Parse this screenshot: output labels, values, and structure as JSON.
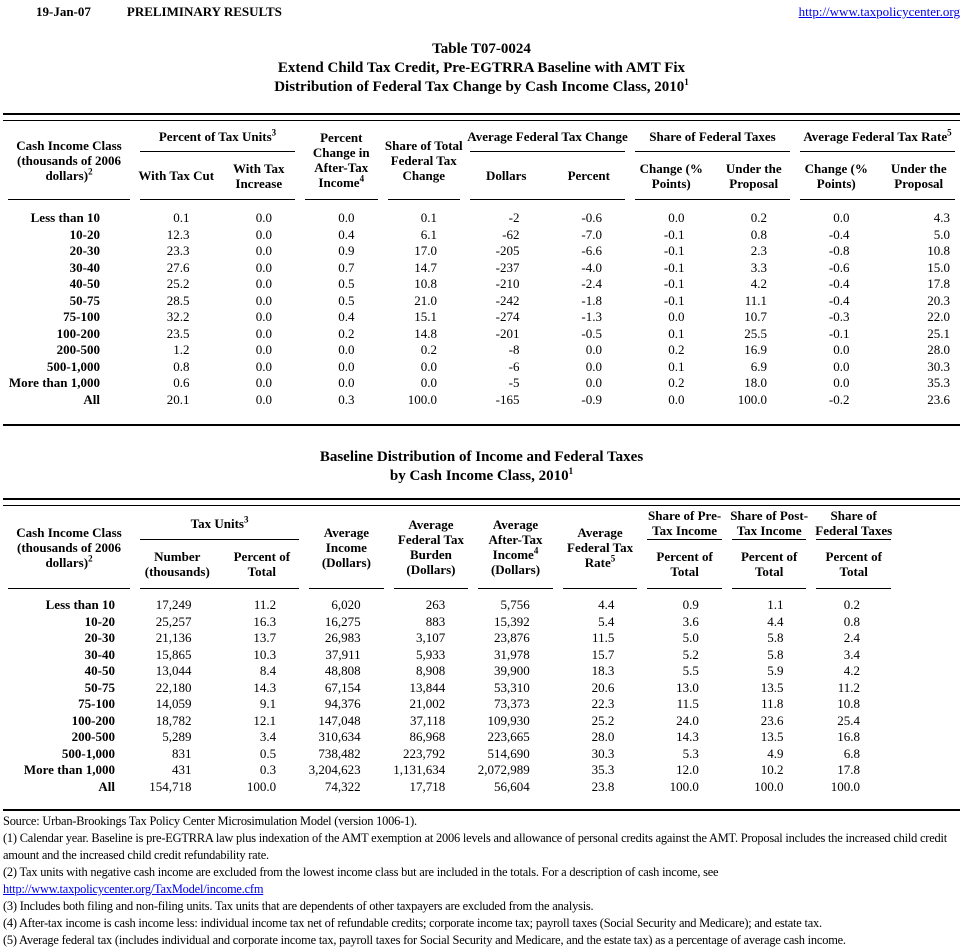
{
  "colors": {
    "background": "#ffffff",
    "text": "#000000",
    "link": "#0000ee"
  },
  "page_header": {
    "date": "19-Jan-07",
    "status": "PRELIMINARY RESULTS",
    "site_link": "http://www.taxpolicycenter.org"
  },
  "table1": {
    "title_line1": "Table T07-0024",
    "title_line2": "Extend Child Tax Credit, Pre-EGTRRA Baseline with AMT Fix",
    "title_line3": "Distribution of Federal Tax Change by Cash Income Class, 2010",
    "title_sup": "1",
    "header": {
      "cash_income_class": {
        "label": "Cash Income Class (thousands of 2006 dollars)",
        "sup": "2"
      },
      "pct_tax_units": {
        "label": "Percent of Tax Units",
        "sup": "3"
      },
      "with_tax_cut": "With Tax Cut",
      "with_tax_increase": "With Tax Increase",
      "pct_change_after_tax": {
        "label": "Percent Change in After-Tax Income",
        "sup": "4"
      },
      "share_total_change": "Share of Total Federal Tax Change",
      "avg_fed_tax_change": "Average Federal Tax Change",
      "dollars": "Dollars",
      "percent": "Percent",
      "share_fed_taxes": "Share of Federal Taxes",
      "change_pts": "Change (% Points)",
      "under_proposal": "Under the Proposal",
      "avg_fed_tax_rate": {
        "label": "Average Federal Tax Rate",
        "sup": "5"
      }
    },
    "rows": [
      [
        "Less than 10",
        "0.1",
        "0.0",
        "0.0",
        "0.1",
        "-2",
        "-0.6",
        "0.0",
        "0.2",
        "0.0",
        "4.3"
      ],
      [
        "10-20",
        "12.3",
        "0.0",
        "0.4",
        "6.1",
        "-62",
        "-7.0",
        "-0.1",
        "0.8",
        "-0.4",
        "5.0"
      ],
      [
        "20-30",
        "23.3",
        "0.0",
        "0.9",
        "17.0",
        "-205",
        "-6.6",
        "-0.1",
        "2.3",
        "-0.8",
        "10.8"
      ],
      [
        "30-40",
        "27.6",
        "0.0",
        "0.7",
        "14.7",
        "-237",
        "-4.0",
        "-0.1",
        "3.3",
        "-0.6",
        "15.0"
      ],
      [
        "40-50",
        "25.2",
        "0.0",
        "0.5",
        "10.8",
        "-210",
        "-2.4",
        "-0.1",
        "4.2",
        "-0.4",
        "17.8"
      ],
      [
        "50-75",
        "28.5",
        "0.0",
        "0.5",
        "21.0",
        "-242",
        "-1.8",
        "-0.1",
        "11.1",
        "-0.4",
        "20.3"
      ],
      [
        "75-100",
        "32.2",
        "0.0",
        "0.4",
        "15.1",
        "-274",
        "-1.3",
        "0.0",
        "10.7",
        "-0.3",
        "22.0"
      ],
      [
        "100-200",
        "23.5",
        "0.0",
        "0.2",
        "14.8",
        "-201",
        "-0.5",
        "0.1",
        "25.5",
        "-0.1",
        "25.1"
      ],
      [
        "200-500",
        "1.2",
        "0.0",
        "0.0",
        "0.2",
        "-8",
        "0.0",
        "0.2",
        "16.9",
        "0.0",
        "28.0"
      ],
      [
        "500-1,000",
        "0.8",
        "0.0",
        "0.0",
        "0.0",
        "-6",
        "0.0",
        "0.1",
        "6.9",
        "0.0",
        "30.3"
      ],
      [
        "More than 1,000",
        "0.6",
        "0.0",
        "0.0",
        "0.0",
        "-5",
        "0.0",
        "0.2",
        "18.0",
        "0.0",
        "35.3"
      ],
      [
        "All",
        "20.1",
        "0.0",
        "0.3",
        "100.0",
        "-165",
        "-0.9",
        "0.0",
        "100.0",
        "-0.2",
        "23.6"
      ]
    ]
  },
  "table2": {
    "title_line1": "Baseline Distribution of Income and Federal Taxes",
    "title_line2": "by Cash Income Class, 2010",
    "title_sup": "1",
    "header": {
      "cash_income_class": {
        "label": "Cash Income Class (thousands of 2006 dollars)",
        "sup": "2"
      },
      "tax_units": {
        "label": "Tax Units",
        "sup": "3"
      },
      "number_thousands": "Number (thousands)",
      "pct_of_total": "Percent of Total",
      "avg_income": "Average Income (Dollars)",
      "avg_burden": "Average Federal Tax Burden (Dollars)",
      "avg_after_tax": {
        "pre": "Average After-Tax Income",
        "sup": "4",
        "post": " (Dollars)"
      },
      "avg_rate": {
        "label": "Average Federal Tax Rate",
        "sup": "5"
      },
      "share_pre_tax": "Share of Pre-Tax Income",
      "share_post_tax": "Share of Post-Tax Income",
      "share_fed_taxes": "Share of Federal Taxes"
    },
    "rows": [
      [
        "Less than 10",
        "17,249",
        "11.2",
        "6,020",
        "263",
        "5,756",
        "4.4",
        "0.9",
        "1.1",
        "0.2"
      ],
      [
        "10-20",
        "25,257",
        "16.3",
        "16,275",
        "883",
        "15,392",
        "5.4",
        "3.6",
        "4.4",
        "0.8"
      ],
      [
        "20-30",
        "21,136",
        "13.7",
        "26,983",
        "3,107",
        "23,876",
        "11.5",
        "5.0",
        "5.8",
        "2.4"
      ],
      [
        "30-40",
        "15,865",
        "10.3",
        "37,911",
        "5,933",
        "31,978",
        "15.7",
        "5.2",
        "5.8",
        "3.4"
      ],
      [
        "40-50",
        "13,044",
        "8.4",
        "48,808",
        "8,908",
        "39,900",
        "18.3",
        "5.5",
        "5.9",
        "4.2"
      ],
      [
        "50-75",
        "22,180",
        "14.3",
        "67,154",
        "13,844",
        "53,310",
        "20.6",
        "13.0",
        "13.5",
        "11.2"
      ],
      [
        "75-100",
        "14,059",
        "9.1",
        "94,376",
        "21,002",
        "73,373",
        "22.3",
        "11.5",
        "11.8",
        "10.8"
      ],
      [
        "100-200",
        "18,782",
        "12.1",
        "147,048",
        "37,118",
        "109,930",
        "25.2",
        "24.0",
        "23.6",
        "25.4"
      ],
      [
        "200-500",
        "5,289",
        "3.4",
        "310,634",
        "86,968",
        "223,665",
        "28.0",
        "14.3",
        "13.5",
        "16.8"
      ],
      [
        "500-1,000",
        "831",
        "0.5",
        "738,482",
        "223,792",
        "514,690",
        "30.3",
        "5.3",
        "4.9",
        "6.8"
      ],
      [
        "More than 1,000",
        "431",
        "0.3",
        "3,204,623",
        "1,131,634",
        "2,072,989",
        "35.3",
        "12.0",
        "10.2",
        "17.8"
      ],
      [
        "All",
        "154,718",
        "100.0",
        "74,322",
        "17,718",
        "56,604",
        "23.8",
        "100.0",
        "100.0",
        "100.0"
      ]
    ]
  },
  "footnotes": {
    "source": "Source: Urban-Brookings Tax Policy Center Microsimulation Model (version 1006-1).",
    "fn1": "(1) Calendar year. Baseline is pre-EGTRRA law plus indexation of the AMT exemption at 2006 levels and allowance of personal credits against the AMT. Proposal includes the increased child credit amount and the increased child credit refundability rate.",
    "fn2": "(2) Tax units with negative cash income are excluded from the lowest income class but are included in the totals. For a description of cash income, see",
    "fn2_link": "http://www.taxpolicycenter.org/TaxModel/income.cfm",
    "fn3": "(3) Includes both filing and non-filing units.  Tax units that are dependents of other taxpayers are excluded from the analysis.",
    "fn4": "(4) After-tax income is cash income less: individual income tax net of refundable credits; corporate income tax; payroll taxes (Social Security and Medicare); and estate tax.",
    "fn5": "(5) Average federal tax (includes individual and corporate income tax, payroll taxes for Social Security and Medicare, and the estate tax) as a percentage of average cash income."
  }
}
